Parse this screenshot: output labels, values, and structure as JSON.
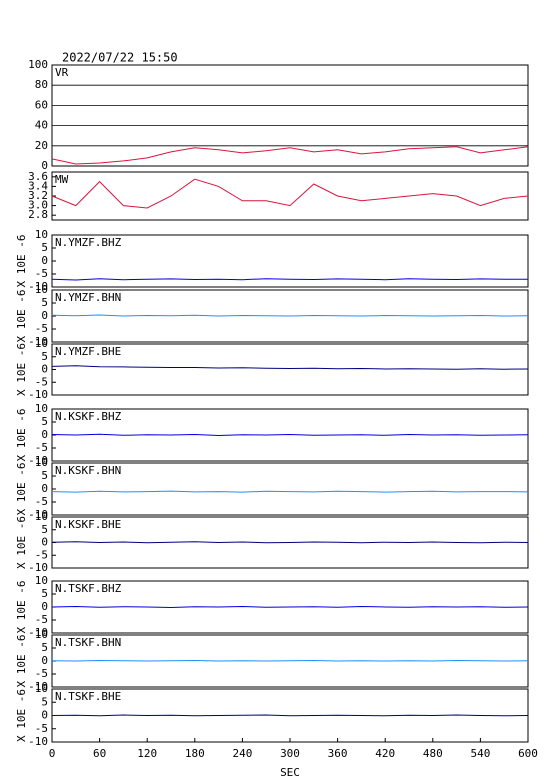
{
  "header": {
    "title": "2022/07/22 15:50"
  },
  "chart_data": [
    {
      "type": "line",
      "title": "VR",
      "color": "#dc143c",
      "grid": true,
      "xlim": [
        0,
        600
      ],
      "ylim": [
        0,
        100
      ],
      "yticks": [
        0,
        20,
        40,
        60,
        80,
        100
      ],
      "x": [
        0,
        30,
        60,
        90,
        120,
        150,
        180,
        210,
        240,
        270,
        300,
        330,
        360,
        390,
        420,
        450,
        480,
        510,
        540,
        570,
        600
      ],
      "values": [
        7,
        2,
        3,
        5,
        8,
        14,
        18,
        16,
        13,
        15,
        18,
        14,
        16,
        12,
        14,
        17,
        18,
        19,
        13,
        16,
        19
      ]
    },
    {
      "type": "line",
      "title": "MW",
      "color": "#dc143c",
      "grid": false,
      "xlim": [
        0,
        600
      ],
      "ylim": [
        2.7,
        3.7
      ],
      "yticks": [
        2.8,
        {
          "value": 3,
          "label": "3.0"
        },
        3.2,
        3.4,
        3.6
      ],
      "x": [
        0,
        30,
        60,
        90,
        120,
        150,
        180,
        210,
        240,
        270,
        300,
        330,
        360,
        390,
        420,
        450,
        480,
        510,
        540,
        570,
        600
      ],
      "values": [
        3.2,
        3.0,
        3.5,
        3.0,
        2.95,
        3.2,
        3.55,
        3.4,
        3.1,
        3.1,
        3.0,
        3.45,
        3.2,
        3.1,
        3.15,
        3.2,
        3.25,
        3.2,
        3.0,
        3.15,
        3.2
      ]
    },
    {
      "type": "line",
      "title": "N.YMZF.BHZ",
      "ylabel": "X 10E -6",
      "color": "#0000dd",
      "grid": false,
      "xlim": [
        0,
        600
      ],
      "ylim": [
        -10,
        10
      ],
      "yticks": [
        -10,
        -5,
        0,
        5,
        10
      ],
      "x": [
        0,
        30,
        60,
        90,
        120,
        150,
        180,
        210,
        240,
        270,
        300,
        330,
        360,
        390,
        420,
        450,
        480,
        510,
        540,
        570,
        600
      ],
      "values": [
        -7,
        -7.3,
        -6.8,
        -7.2,
        -7,
        -6.9,
        -7.1,
        -7,
        -7.2,
        -6.8,
        -7,
        -7.1,
        -6.9,
        -7,
        -7.2,
        -6.8,
        -7,
        -7.1,
        -6.9,
        -7,
        -7
      ]
    },
    {
      "type": "line",
      "title": "N.YMZF.BHN",
      "ylabel": "X 10E -6",
      "color": "#1e90ff",
      "grid": false,
      "xlim": [
        0,
        600
      ],
      "ylim": [
        -10,
        10
      ],
      "yticks": [
        -10,
        -5,
        0,
        5,
        10
      ],
      "x": [
        0,
        30,
        60,
        90,
        120,
        150,
        180,
        210,
        240,
        270,
        300,
        330,
        360,
        390,
        420,
        450,
        480,
        510,
        540,
        570,
        600
      ],
      "values": [
        0.3,
        0.1,
        0.4,
        0,
        0.2,
        0.1,
        0.3,
        0,
        0.2,
        0.1,
        0,
        0.2,
        0.1,
        0,
        0.2,
        0.1,
        0,
        0.1,
        0.2,
        0,
        0.1
      ]
    },
    {
      "type": "line",
      "title": "N.YMZF.BHE",
      "ylabel": "X 10E -6",
      "color": "#000080",
      "grid": false,
      "xlim": [
        0,
        600
      ],
      "ylim": [
        -10,
        10
      ],
      "yticks": [
        -10,
        -5,
        0,
        5,
        10
      ],
      "x": [
        0,
        30,
        60,
        90,
        120,
        150,
        180,
        210,
        240,
        270,
        300,
        330,
        360,
        390,
        420,
        450,
        480,
        510,
        540,
        570,
        600
      ],
      "values": [
        1.2,
        1.5,
        1.1,
        1,
        0.9,
        0.8,
        0.8,
        0.6,
        0.7,
        0.5,
        0.4,
        0.5,
        0.3,
        0.4,
        0.2,
        0.3,
        0.2,
        0.1,
        0.3,
        0.1,
        0.2
      ]
    },
    {
      "type": "line",
      "title": "N.KSKF.BHZ",
      "ylabel": "X 10E -6",
      "color": "#0000dd",
      "grid": false,
      "xlim": [
        0,
        600
      ],
      "ylim": [
        -10,
        10
      ],
      "yticks": [
        -10,
        -5,
        0,
        5,
        10
      ],
      "x": [
        0,
        30,
        60,
        90,
        120,
        150,
        180,
        210,
        240,
        270,
        300,
        330,
        360,
        390,
        420,
        450,
        480,
        510,
        540,
        570,
        600
      ],
      "values": [
        0.2,
        0,
        0.3,
        -0.1,
        0.1,
        0,
        0.2,
        -0.2,
        0.1,
        0,
        0.2,
        -0.1,
        0,
        0.1,
        -0.1,
        0.2,
        0,
        0.1,
        -0.1,
        0,
        0.1
      ]
    },
    {
      "type": "line",
      "title": "N.KSKF.BHN",
      "ylabel": "X 10E -6",
      "color": "#1e90ff",
      "grid": false,
      "xlim": [
        0,
        600
      ],
      "ylim": [
        -10,
        10
      ],
      "yticks": [
        -10,
        -5,
        0,
        5,
        10
      ],
      "x": [
        0,
        30,
        60,
        90,
        120,
        150,
        180,
        210,
        240,
        270,
        300,
        330,
        360,
        390,
        420,
        450,
        480,
        510,
        540,
        570,
        600
      ],
      "values": [
        -1,
        -1.2,
        -0.9,
        -1.1,
        -1,
        -0.8,
        -1.1,
        -1,
        -1.2,
        -0.9,
        -1,
        -1.1,
        -0.9,
        -1,
        -1.2,
        -1,
        -0.9,
        -1.1,
        -1,
        -1,
        -1.1
      ]
    },
    {
      "type": "line",
      "title": "N.KSKF.BHE",
      "ylabel": "X 10E -6",
      "color": "#000080",
      "grid": false,
      "xlim": [
        0,
        600
      ],
      "ylim": [
        -10,
        10
      ],
      "yticks": [
        -10,
        -5,
        0,
        5,
        10
      ],
      "x": [
        0,
        30,
        60,
        90,
        120,
        150,
        180,
        210,
        240,
        270,
        300,
        330,
        360,
        390,
        420,
        450,
        480,
        510,
        540,
        570,
        600
      ],
      "values": [
        0.1,
        0.3,
        0,
        0.2,
        -0.1,
        0.1,
        0.3,
        0,
        0.2,
        -0.1,
        0,
        0.2,
        0.1,
        -0.1,
        0.1,
        0,
        0.2,
        0,
        -0.1,
        0.1,
        0
      ]
    },
    {
      "type": "line",
      "title": "N.TSKF.BHZ",
      "ylabel": "X 10E -6",
      "color": "#0000dd",
      "grid": false,
      "xlim": [
        0,
        600
      ],
      "ylim": [
        -10,
        10
      ],
      "yticks": [
        -10,
        -5,
        0,
        5,
        10
      ],
      "x": [
        0,
        30,
        60,
        90,
        120,
        150,
        180,
        210,
        240,
        270,
        300,
        330,
        360,
        390,
        420,
        450,
        480,
        510,
        540,
        570,
        600
      ],
      "values": [
        0,
        0.2,
        -0.1,
        0.1,
        0,
        -0.2,
        0.1,
        0,
        0.2,
        -0.1,
        0,
        0.1,
        -0.1,
        0.2,
        0,
        -0.1,
        0.1,
        0,
        0.1,
        -0.1,
        0
      ]
    },
    {
      "type": "line",
      "title": "N.TSKF.BHN",
      "ylabel": "X 10E -6",
      "color": "#1e90ff",
      "grid": false,
      "xlim": [
        0,
        600
      ],
      "ylim": [
        -10,
        10
      ],
      "yticks": [
        -10,
        -5,
        0,
        5,
        10
      ],
      "x": [
        0,
        30,
        60,
        90,
        120,
        150,
        180,
        210,
        240,
        270,
        300,
        330,
        360,
        390,
        420,
        450,
        480,
        510,
        540,
        570,
        600
      ],
      "values": [
        0.1,
        0,
        0.2,
        0.1,
        0,
        0.1,
        0.2,
        0,
        0.1,
        0,
        0.1,
        0.2,
        0,
        0.1,
        0,
        0.1,
        0,
        0.2,
        0.1,
        0,
        0.1
      ]
    },
    {
      "type": "line",
      "title": "N.TSKF.BHE",
      "ylabel": "X 10E -6",
      "xlabel": "SEC",
      "color": "#000080",
      "grid": false,
      "xlim": [
        0,
        600
      ],
      "ylim": [
        -10,
        10
      ],
      "yticks": [
        -10,
        -5,
        0,
        5,
        10
      ],
      "xticks": [
        0,
        60,
        120,
        180,
        240,
        300,
        360,
        420,
        480,
        540,
        600
      ],
      "x": [
        0,
        30,
        60,
        90,
        120,
        150,
        180,
        210,
        240,
        270,
        300,
        330,
        360,
        390,
        420,
        450,
        480,
        510,
        540,
        570,
        600
      ],
      "values": [
        0,
        0.1,
        -0.1,
        0.2,
        0,
        0.1,
        -0.1,
        0,
        0.1,
        0.2,
        -0.1,
        0,
        0.1,
        0,
        -0.1,
        0.1,
        0,
        0.2,
        0,
        -0.1,
        0
      ]
    }
  ]
}
